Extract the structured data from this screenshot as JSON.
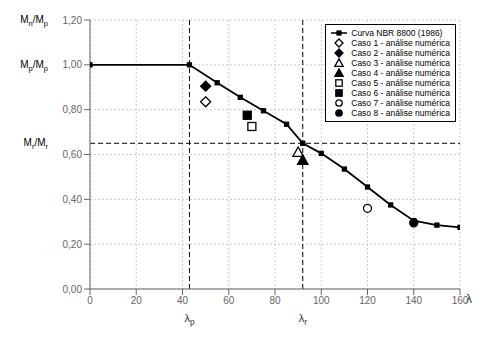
{
  "chart_data": {
    "type": "scatter",
    "x_label": "λ",
    "xlim": [
      0,
      160
    ],
    "ylim": [
      0.0,
      1.2
    ],
    "xticks": [
      0,
      20,
      40,
      60,
      80,
      100,
      120,
      140,
      160
    ],
    "yticks": [
      {
        "value": 0.0,
        "label": "0,00"
      },
      {
        "value": 0.2,
        "label": "0,20"
      },
      {
        "value": 0.4,
        "label": "0,40"
      },
      {
        "value": 0.6,
        "label": "0,60"
      },
      {
        "value": 0.8,
        "label": "0,80"
      },
      {
        "value": 1.0,
        "label": "1,00"
      },
      {
        "value": 1.2,
        "label": "1,20"
      }
    ],
    "grid": true,
    "legend": "upper right",
    "series": [
      {
        "name": "Curva NBR 8800 (1986)",
        "type": "line",
        "color": "#000000",
        "marker": "square",
        "x": [
          0,
          43,
          55,
          65,
          75,
          85,
          92,
          100,
          110,
          120,
          130,
          140,
          150,
          160
        ],
        "values": [
          1.0,
          1.0,
          0.92,
          0.855,
          0.795,
          0.735,
          0.65,
          0.605,
          0.535,
          0.455,
          0.375,
          0.305,
          0.285,
          0.275
        ]
      },
      {
        "name": "Caso 1 - análise numérica",
        "type": "scatter",
        "color": "#000000",
        "marker": "diamond-open",
        "x": [
          50
        ],
        "values": [
          0.835
        ]
      },
      {
        "name": "Caso 2 - análise numérica",
        "type": "scatter",
        "color": "#000000",
        "marker": "diamond",
        "x": [
          50
        ],
        "values": [
          0.905
        ]
      },
      {
        "name": "Caso 3 - análise numérica",
        "type": "scatter",
        "color": "#000000",
        "marker": "triangle-open",
        "x": [
          90
        ],
        "values": [
          0.61
        ]
      },
      {
        "name": "Caso 4 - análise numérica",
        "type": "scatter",
        "color": "#000000",
        "marker": "triangle",
        "x": [
          92
        ],
        "values": [
          0.575
        ]
      },
      {
        "name": "Caso 5 - análise numérica",
        "type": "scatter",
        "color": "#000000",
        "marker": "square-open",
        "x": [
          70
        ],
        "values": [
          0.725
        ]
      },
      {
        "name": "Caso 6 - análise numérica",
        "type": "scatter",
        "color": "#000000",
        "marker": "square",
        "x": [
          68
        ],
        "values": [
          0.775
        ]
      },
      {
        "name": "Caso 7 - análise numérica",
        "type": "scatter",
        "color": "#000000",
        "marker": "circle-open",
        "x": [
          120
        ],
        "values": [
          0.36
        ]
      },
      {
        "name": "Caso 8 - análise numérica",
        "type": "scatter",
        "color": "#000000",
        "marker": "circle",
        "x": [
          140
        ],
        "values": [
          0.295
        ]
      }
    ],
    "reference_lines": [
      {
        "axis": "x",
        "value": 43,
        "label": "λp",
        "line_style": "dashed"
      },
      {
        "axis": "x",
        "value": 92,
        "label": "λr",
        "line_style": "dashed"
      },
      {
        "axis": "y",
        "value": 0.65,
        "line_style": "dashed"
      }
    ],
    "annotations": [
      {
        "text": "Mn/Mp",
        "y": 1.2
      },
      {
        "text": "Mp/Mp",
        "y": 1.0
      },
      {
        "text": "Mr/Mr",
        "y": 0.65
      }
    ]
  }
}
